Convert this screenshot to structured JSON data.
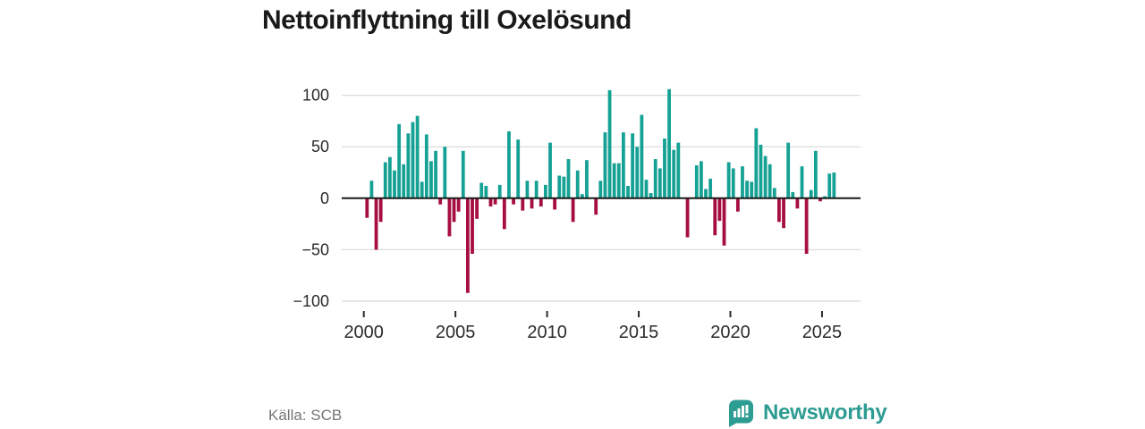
{
  "header": {
    "title": "Nettoinflyttning till Oxelösund"
  },
  "footer": {
    "source_label": "Källa: SCB",
    "brand_name": "Newsworthy"
  },
  "icons": {
    "logo": "newsworthy-chart-bubble-icon"
  },
  "colors": {
    "positive_bar": "#16a195",
    "negative_bar": "#a60d42",
    "gridline": "#dcdcdc",
    "zero_line": "#1a1a1a",
    "axis_text": "#2b2b2b",
    "title_text": "#1a1a1a",
    "source_text": "#757575",
    "brand_teal": "#2d9c92"
  },
  "chart_data": {
    "type": "bar",
    "title": "Nettoinflyttning till Oxelösund",
    "xlabel": "",
    "ylabel": "",
    "frequency": "quarterly",
    "start_period": "2000Q1",
    "end_period": "2025Q3",
    "ylim": [
      -100,
      110
    ],
    "grid": true,
    "y_ticks": [
      100,
      50,
      0,
      -50,
      -100
    ],
    "x_tick_years": [
      2000,
      2005,
      2010,
      2015,
      2020,
      2025
    ],
    "series": [
      {
        "name": "Nettoinflyttning",
        "values": [
          -19,
          17,
          -50,
          -23,
          35,
          40,
          27,
          72,
          33,
          63,
          74,
          80,
          16,
          62,
          36,
          46,
          -6,
          50,
          -37,
          -23,
          -13,
          46,
          -92,
          -54,
          -20,
          15,
          12,
          -8,
          -6,
          13,
          -30,
          65,
          -6,
          57,
          -12,
          17,
          -10,
          17,
          -8,
          13,
          54,
          -11,
          22,
          21,
          38,
          -23,
          27,
          4,
          37,
          0,
          -16,
          17,
          64,
          105,
          34,
          34,
          64,
          12,
          63,
          50,
          81,
          18,
          5,
          38,
          29,
          58,
          106,
          47,
          54,
          0,
          -38,
          0,
          32,
          36,
          9,
          19,
          -36,
          -22,
          -46,
          35,
          29,
          -13,
          31,
          17,
          16,
          68,
          52,
          41,
          33,
          10,
          -23,
          -29,
          54,
          6,
          -10,
          31,
          -54,
          8,
          46,
          -3,
          2,
          24,
          25
        ]
      }
    ]
  }
}
